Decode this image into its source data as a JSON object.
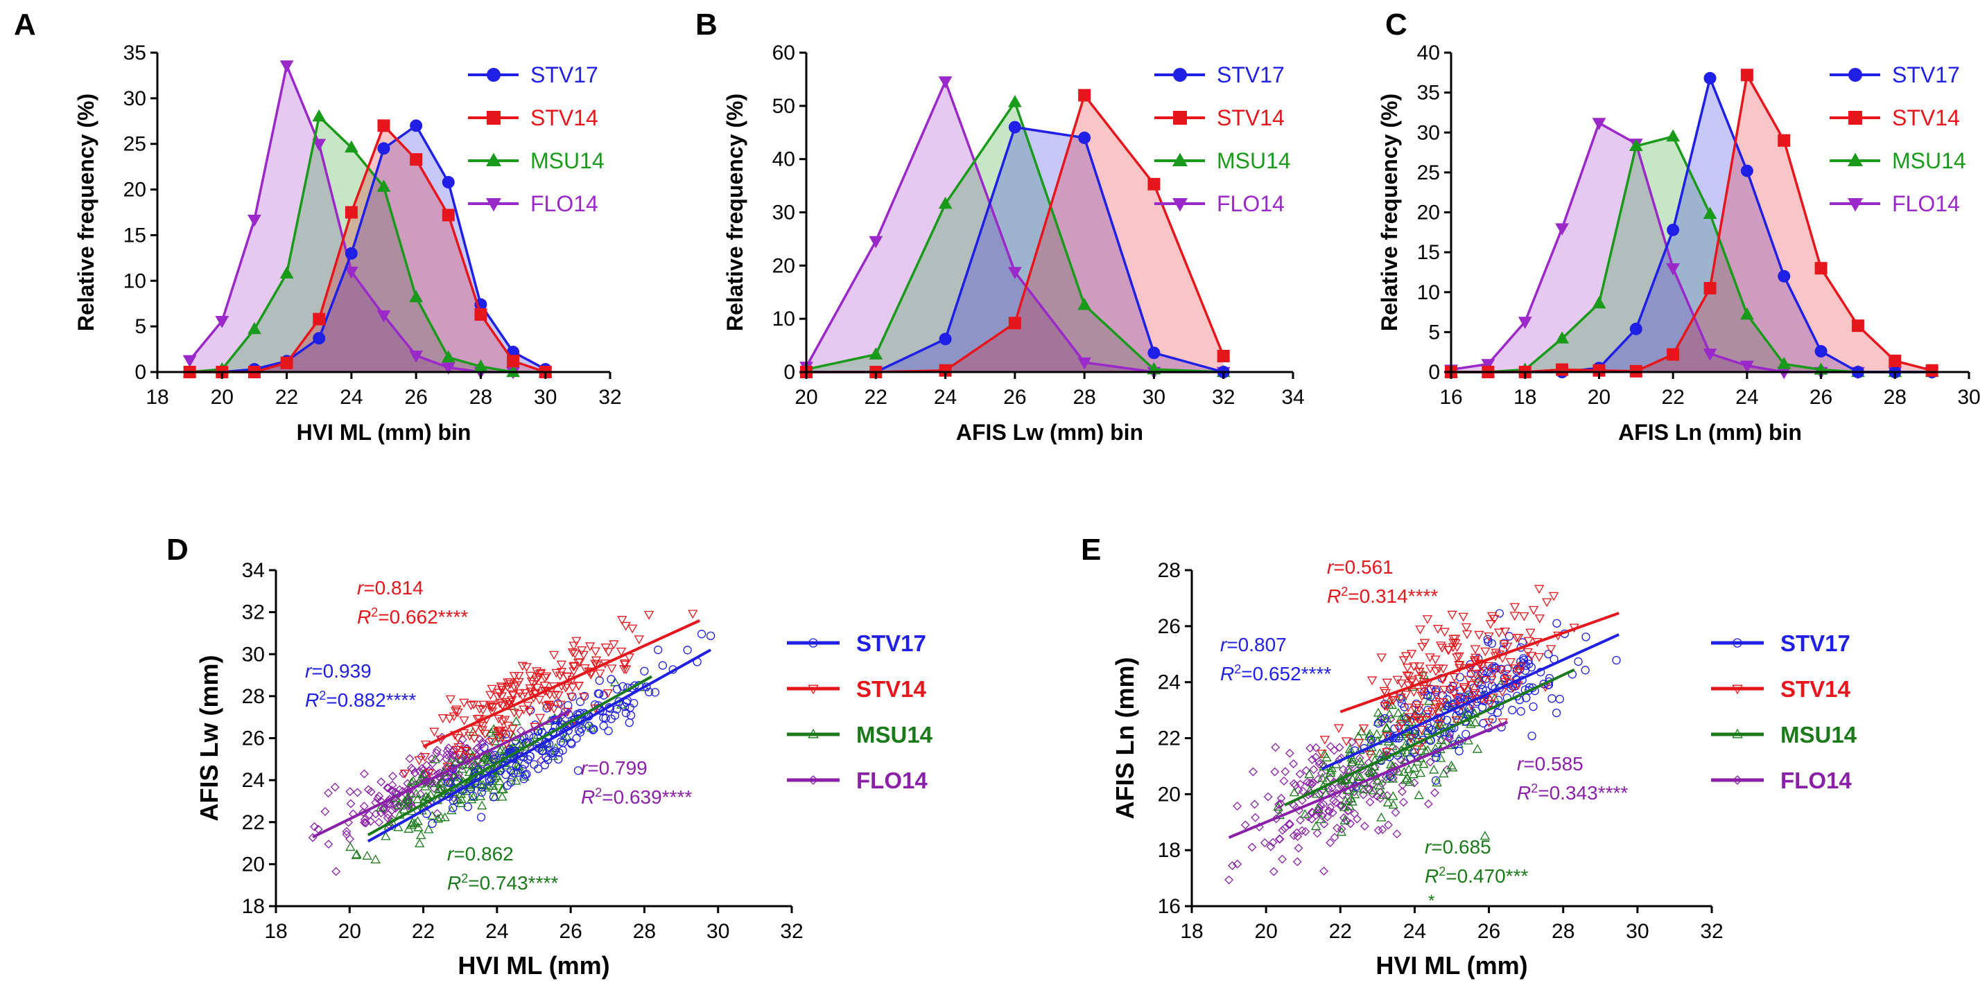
{
  "colors": {
    "STV17": "#1f1fe6",
    "STV14": "#e6161c",
    "MSU14": "#1a9a1a",
    "FLO14": "#9b28c8"
  },
  "colors_scatter": {
    "STV17": "#1f1fe6",
    "STV14": "#e6161c",
    "MSU14": "#1a7a1a",
    "FLO14": "#8a1fa8"
  },
  "chart_data": [
    {
      "panel": "A",
      "type": "area",
      "xlabel": "HVI ML (mm) bin",
      "ylabel": "Relative frequency (%)",
      "xlim": [
        18,
        32
      ],
      "ylim": [
        0,
        35
      ],
      "xticks": [
        18,
        20,
        22,
        24,
        26,
        28,
        30,
        32
      ],
      "yticks": [
        0,
        5,
        10,
        15,
        20,
        25,
        30,
        35
      ],
      "legend": "top-right",
      "series": [
        {
          "name": "STV17",
          "marker": "circle",
          "x": [
            19,
            20,
            21,
            22,
            23,
            24,
            25,
            26,
            27,
            28,
            29,
            30
          ],
          "values": [
            0,
            0,
            0.3,
            1.2,
            3.7,
            13,
            24.5,
            27,
            20.8,
            7.4,
            2.2,
            0.3
          ]
        },
        {
          "name": "STV14",
          "marker": "square",
          "x": [
            19,
            20,
            21,
            22,
            23,
            24,
            25,
            26,
            27,
            28,
            29,
            30
          ],
          "values": [
            0,
            0,
            0,
            1,
            5.8,
            17.5,
            27,
            23.3,
            17.2,
            6.3,
            1.2,
            0
          ]
        },
        {
          "name": "MSU14",
          "marker": "triangle-up",
          "x": [
            19,
            20,
            21,
            22,
            23,
            24,
            25,
            26,
            27,
            28,
            29,
            30
          ],
          "values": [
            0,
            0.3,
            4.7,
            10.8,
            28,
            24.6,
            20.3,
            8.2,
            1.6,
            0.6,
            0,
            0
          ]
        },
        {
          "name": "FLO14",
          "marker": "triangle-down",
          "x": [
            19,
            20,
            21,
            22,
            23,
            24,
            25,
            26,
            27,
            28,
            29,
            30
          ],
          "values": [
            1.3,
            5.6,
            16.7,
            33.6,
            25,
            11,
            6.2,
            1.8,
            0.5,
            0,
            0,
            0
          ]
        }
      ]
    },
    {
      "panel": "B",
      "type": "area",
      "xlabel": "AFIS Lw (mm) bin",
      "ylabel": "Relative frequency (%)",
      "xlim": [
        20,
        34
      ],
      "ylim": [
        0,
        60
      ],
      "xticks": [
        20,
        22,
        24,
        26,
        28,
        30,
        32,
        34
      ],
      "yticks": [
        0,
        10,
        20,
        30,
        40,
        50,
        60
      ],
      "legend": "top-right",
      "series": [
        {
          "name": "STV17",
          "marker": "circle",
          "x": [
            20,
            22,
            24,
            26,
            28,
            30,
            32
          ],
          "values": [
            0,
            0,
            6.2,
            46,
            44,
            3.6,
            0
          ]
        },
        {
          "name": "STV14",
          "marker": "square",
          "x": [
            20,
            22,
            24,
            26,
            28,
            30,
            32
          ],
          "values": [
            0,
            0,
            0.3,
            9.2,
            52,
            35.3,
            3
          ]
        },
        {
          "name": "MSU14",
          "marker": "triangle-up",
          "x": [
            20,
            22,
            24,
            26,
            28,
            30,
            32
          ],
          "values": [
            0.5,
            3.3,
            31.6,
            50.7,
            12.6,
            0.5,
            0
          ]
        },
        {
          "name": "FLO14",
          "marker": "triangle-down",
          "x": [
            20,
            22,
            24,
            26,
            28,
            30,
            32
          ],
          "values": [
            1,
            24.6,
            54.6,
            18.8,
            1.8,
            0,
            0
          ]
        }
      ]
    },
    {
      "panel": "C",
      "type": "area",
      "xlabel": "AFIS Ln (mm) bin",
      "ylabel": "Relative frequency (%)",
      "xlim": [
        16,
        30
      ],
      "ylim": [
        0,
        40
      ],
      "xticks": [
        16,
        18,
        20,
        22,
        24,
        26,
        28,
        30
      ],
      "yticks": [
        0,
        5,
        10,
        15,
        20,
        25,
        30,
        35,
        40
      ],
      "legend": "top-right",
      "series": [
        {
          "name": "STV17",
          "marker": "circle",
          "x": [
            16,
            17,
            18,
            19,
            20,
            21,
            22,
            23,
            24,
            25,
            26,
            27,
            28,
            29
          ],
          "values": [
            0,
            0,
            0,
            0,
            0.5,
            5.4,
            17.8,
            36.8,
            25.2,
            12,
            2.6,
            0,
            0,
            0
          ]
        },
        {
          "name": "STV14",
          "marker": "square",
          "x": [
            16,
            17,
            18,
            19,
            20,
            21,
            22,
            23,
            24,
            25,
            26,
            27,
            28,
            29
          ],
          "values": [
            0,
            0,
            0,
            0.3,
            0.2,
            0.1,
            2.2,
            10.5,
            37.2,
            29,
            13,
            5.8,
            1.4,
            0.2
          ]
        },
        {
          "name": "MSU14",
          "marker": "triangle-up",
          "x": [
            16,
            17,
            18,
            19,
            20,
            21,
            22,
            23,
            24,
            25,
            26,
            27,
            28,
            29
          ],
          "values": [
            0,
            0,
            0.3,
            4.2,
            8.6,
            28.3,
            29.5,
            19.8,
            7.2,
            1,
            0.3,
            0,
            0,
            0
          ]
        },
        {
          "name": "FLO14",
          "marker": "triangle-down",
          "x": [
            16,
            17,
            18,
            19,
            20,
            21,
            22,
            23,
            24,
            25,
            26,
            27,
            28,
            29
          ],
          "values": [
            0.3,
            1,
            6.3,
            18,
            31.2,
            28.6,
            13,
            2.3,
            0.8,
            0,
            0,
            0,
            0,
            0
          ]
        }
      ]
    },
    {
      "panel": "D",
      "type": "scatter",
      "xlabel": "HVI ML (mm)",
      "ylabel": "AFIS Lw (mm)",
      "xlim": [
        18,
        32
      ],
      "ylim": [
        18,
        34
      ],
      "xticks": [
        18,
        20,
        22,
        24,
        26,
        28,
        30,
        32
      ],
      "yticks": [
        18,
        20,
        22,
        24,
        26,
        28,
        30,
        32,
        34
      ],
      "legend": "right",
      "series": [
        {
          "name": "STV17",
          "marker": "circle",
          "x_range": [
            21.5,
            29.8
          ],
          "x_mu": 25.5,
          "x_sd": 1.6,
          "fit": {
            "slope": 0.98,
            "intercept": 1.0
          },
          "noise": 0.7,
          "fit_x": [
            20.5,
            29.8
          ]
        },
        {
          "name": "STV14",
          "marker": "triangle-down",
          "x_range": [
            21.5,
            29.5
          ],
          "x_mu": 25,
          "x_sd": 1.4,
          "fit": {
            "slope": 0.8,
            "intercept": 8.0
          },
          "noise": 0.9,
          "fit_x": [
            22,
            29.5
          ]
        },
        {
          "name": "MSU14",
          "marker": "triangle-up",
          "x_range": [
            20,
            28
          ],
          "x_mu": 23.4,
          "x_sd": 1.3,
          "fit": {
            "slope": 0.98,
            "intercept": 1.3
          },
          "noise": 0.8,
          "fit_x": [
            20.5,
            28.2
          ]
        },
        {
          "name": "FLO14",
          "marker": "diamond",
          "x_range": [
            19,
            26
          ],
          "x_mu": 22,
          "x_sd": 1.3,
          "fit": {
            "slope": 0.86,
            "intercept": 4.95
          },
          "noise": 0.7,
          "fit_x": [
            19,
            26
          ]
        }
      ],
      "annotations": [
        {
          "series": "STV14",
          "r": "=0.814",
          "r2": "=0.662****"
        },
        {
          "series": "STV17",
          "r": "=0.939",
          "r2": "=0.882****"
        },
        {
          "series": "FLO14",
          "r": "=0.799",
          "r2": "=0.639****"
        },
        {
          "series": "MSU14",
          "r": "=0.862",
          "r2": "=0.743****"
        }
      ]
    },
    {
      "panel": "E",
      "type": "scatter",
      "xlabel": "HVI ML (mm)",
      "ylabel": "AFIS Ln (mm)",
      "xlim": [
        18,
        32
      ],
      "ylim": [
        16,
        28
      ],
      "xticks": [
        18,
        20,
        22,
        24,
        26,
        28,
        30,
        32
      ],
      "yticks": [
        16,
        18,
        20,
        22,
        24,
        26,
        28
      ],
      "legend": "right",
      "series": [
        {
          "name": "STV17",
          "marker": "circle",
          "x_range": [
            21.5,
            29.8
          ],
          "x_mu": 25.5,
          "x_sd": 1.6,
          "fit": {
            "slope": 0.6,
            "intercept": 8.0
          },
          "noise": 0.8,
          "fit_x": [
            21.5,
            29.5
          ]
        },
        {
          "name": "STV14",
          "marker": "triangle-down",
          "x_range": [
            21.5,
            29.5
          ],
          "x_mu": 25,
          "x_sd": 1.4,
          "fit": {
            "slope": 0.47,
            "intercept": 12.6
          },
          "noise": 1.0,
          "fit_x": [
            22,
            29.5
          ]
        },
        {
          "name": "MSU14",
          "marker": "triangle-up",
          "x_range": [
            20,
            28
          ],
          "x_mu": 23.4,
          "x_sd": 1.3,
          "fit": {
            "slope": 0.62,
            "intercept": 6.9
          },
          "noise": 1.0,
          "fit_x": [
            20.5,
            28.3
          ]
        },
        {
          "name": "FLO14",
          "marker": "diamond",
          "x_range": [
            19,
            26.5
          ],
          "x_mu": 22,
          "x_sd": 1.3,
          "fit": {
            "slope": 0.55,
            "intercept": 8.0
          },
          "noise": 1.0,
          "fit_x": [
            19,
            26.5
          ]
        }
      ],
      "annotations": [
        {
          "series": "STV14",
          "r": "=0.561",
          "r2": "=0.314****"
        },
        {
          "series": "STV17",
          "r": "=0.807",
          "r2": "=0.652****"
        },
        {
          "series": "FLO14",
          "r": "=0.585",
          "r2": "=0.343****"
        },
        {
          "series": "MSU14",
          "r": "=0.685",
          "r2": "=0.470***",
          "extra": "*"
        }
      ]
    }
  ]
}
